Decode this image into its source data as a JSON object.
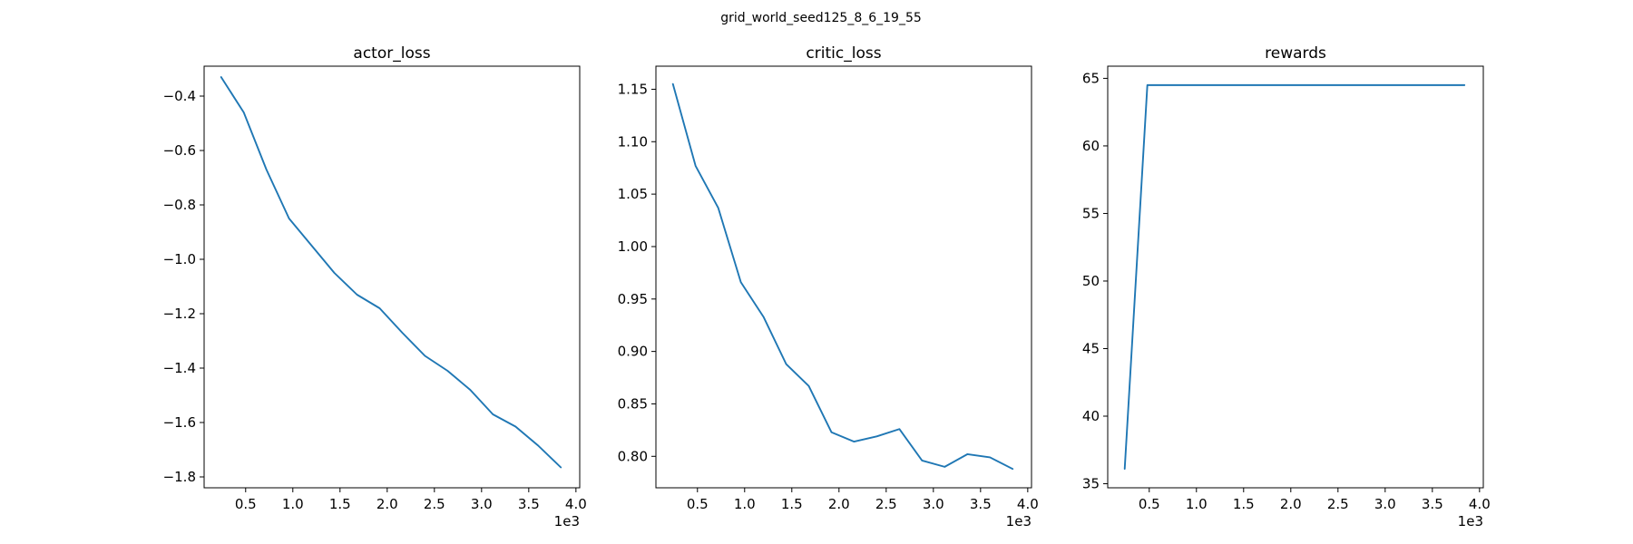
{
  "figure": {
    "suptitle": "grid_world_seed125_8_6_19_55"
  },
  "colors": {
    "line": "#1f77b4",
    "axes": "#000000",
    "background": "#ffffff"
  },
  "chart_data": [
    {
      "type": "line",
      "title": "actor_loss",
      "xlabel": "",
      "ylabel": "",
      "x_offset_label": "1e3",
      "xlim": [
        0.06,
        4.04
      ],
      "ylim": [
        -1.84,
        -0.29
      ],
      "xticks": [
        0.5,
        1.0,
        1.5,
        2.0,
        2.5,
        3.0,
        3.5,
        4.0
      ],
      "xtick_labels": [
        "0.5",
        "1.0",
        "1.5",
        "2.0",
        "2.5",
        "3.0",
        "3.5",
        "4.0"
      ],
      "yticks": [
        -0.4,
        -0.6,
        -0.8,
        -1.0,
        -1.2,
        -1.4,
        -1.6,
        -1.8
      ],
      "ytick_labels": [
        "−0.4",
        "−0.6",
        "−0.8",
        "−1.0",
        "−1.2",
        "−1.4",
        "−1.6",
        "−1.8"
      ],
      "grid": false,
      "series": [
        {
          "x": [
            0.24,
            0.48,
            0.72,
            0.96,
            1.2,
            1.44,
            1.68,
            1.92,
            2.16,
            2.4,
            2.64,
            2.88,
            3.12,
            3.36,
            3.6,
            3.84
          ],
          "y": [
            -0.33,
            -0.46,
            -0.67,
            -0.85,
            -0.95,
            -1.05,
            -1.13,
            -1.18,
            -1.27,
            -1.355,
            -1.41,
            -1.48,
            -1.57,
            -1.615,
            -1.685,
            -1.765
          ]
        }
      ]
    },
    {
      "type": "line",
      "title": "critic_loss",
      "xlabel": "",
      "ylabel": "",
      "x_offset_label": "1e3",
      "xlim": [
        0.06,
        4.04
      ],
      "ylim": [
        0.77,
        1.172
      ],
      "xticks": [
        0.5,
        1.0,
        1.5,
        2.0,
        2.5,
        3.0,
        3.5,
        4.0
      ],
      "xtick_labels": [
        "0.5",
        "1.0",
        "1.5",
        "2.0",
        "2.5",
        "3.0",
        "3.5",
        "4.0"
      ],
      "yticks": [
        0.8,
        0.85,
        0.9,
        0.95,
        1.0,
        1.05,
        1.1,
        1.15
      ],
      "ytick_labels": [
        "0.80",
        "0.85",
        "0.90",
        "0.95",
        "1.00",
        "1.05",
        "1.10",
        "1.15"
      ],
      "grid": false,
      "series": [
        {
          "x": [
            0.24,
            0.48,
            0.72,
            0.96,
            1.2,
            1.44,
            1.68,
            1.92,
            2.16,
            2.4,
            2.64,
            2.88,
            3.12,
            3.36,
            3.6,
            3.84
          ],
          "y": [
            1.155,
            1.077,
            1.037,
            0.966,
            0.933,
            0.888,
            0.867,
            0.823,
            0.814,
            0.819,
            0.826,
            0.796,
            0.79,
            0.802,
            0.799,
            0.788
          ]
        }
      ]
    },
    {
      "type": "line",
      "title": "rewards",
      "xlabel": "",
      "ylabel": "",
      "x_offset_label": "1e3",
      "xlim": [
        0.06,
        4.04
      ],
      "ylim": [
        34.7,
        65.9
      ],
      "xticks": [
        0.5,
        1.0,
        1.5,
        2.0,
        2.5,
        3.0,
        3.5,
        4.0
      ],
      "xtick_labels": [
        "0.5",
        "1.0",
        "1.5",
        "2.0",
        "2.5",
        "3.0",
        "3.5",
        "4.0"
      ],
      "yticks": [
        35,
        40,
        45,
        50,
        55,
        60,
        65
      ],
      "ytick_labels": [
        "35",
        "40",
        "45",
        "50",
        "55",
        "60",
        "65"
      ],
      "grid": false,
      "series": [
        {
          "x": [
            0.24,
            0.48,
            0.72,
            0.96,
            1.2,
            1.44,
            1.68,
            1.92,
            2.16,
            2.4,
            2.64,
            2.88,
            3.12,
            3.36,
            3.6,
            3.84
          ],
          "y": [
            36.1,
            64.5,
            64.5,
            64.5,
            64.5,
            64.5,
            64.5,
            64.5,
            64.5,
            64.5,
            64.5,
            64.5,
            64.5,
            64.5,
            64.5,
            64.5
          ]
        }
      ]
    }
  ]
}
